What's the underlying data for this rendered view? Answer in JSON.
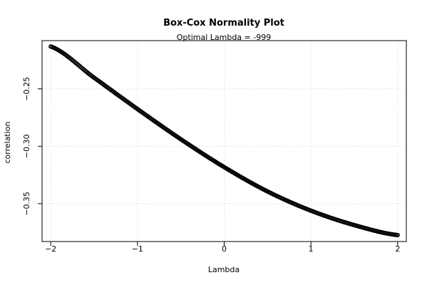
{
  "chart_data": {
    "type": "scatter",
    "title": "Box-Cox Normality Plot",
    "subtitle": "Optimal Lambda = -999",
    "xlabel": "Lambda",
    "ylabel": "correlation",
    "xlim": [
      -2.1,
      2.1
    ],
    "ylim": [
      -0.383,
      -0.208
    ],
    "x_ticks": [
      -2,
      -1,
      0,
      1,
      2
    ],
    "x_tick_labels": [
      "−2",
      "−1",
      "0",
      "1",
      "2"
    ],
    "y_ticks": [
      -0.25,
      -0.3,
      -0.35
    ],
    "y_tick_labels": [
      "−0.25",
      "−0.30",
      "−0.35"
    ],
    "grid": true,
    "grid_style": "dotted",
    "marker": "open-circle",
    "point_color": "#000000",
    "grid_color": "#d3d3d3",
    "series": [
      {
        "x": [
          -2.0,
          -1.5,
          -1.0,
          -0.5,
          0.0,
          0.5,
          1.0,
          1.5,
          2.0
        ],
        "y": [
          -0.2131,
          -0.2403,
          -0.2676,
          -0.2939,
          -0.3182,
          -0.3394,
          -0.3561,
          -0.3687,
          -0.3774
        ]
      }
    ]
  }
}
